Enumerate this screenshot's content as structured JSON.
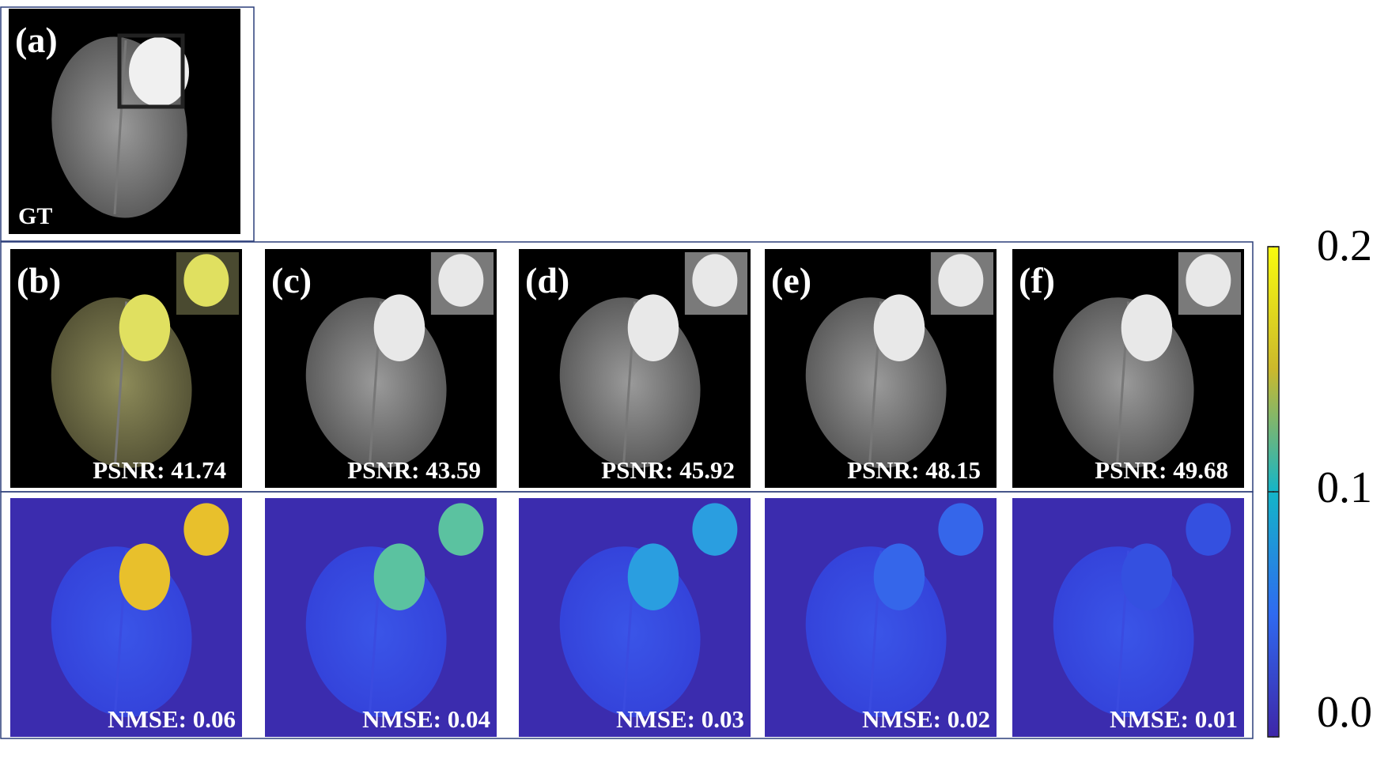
{
  "panels": [
    {
      "label": "(a)",
      "caption": "GT"
    },
    {
      "label": "(b)",
      "psnr": "PSNR: 41.74",
      "nmse": "NMSE: 0.06"
    },
    {
      "label": "(c)",
      "psnr": "PSNR: 43.59",
      "nmse": "NMSE: 0.04"
    },
    {
      "label": "(d)",
      "psnr": "PSNR: 45.92",
      "nmse": "NMSE: 0.03"
    },
    {
      "label": "(e)",
      "psnr": "PSNR: 48.15",
      "nmse": "NMSE: 0.02"
    },
    {
      "label": "(f)",
      "psnr": "PSNR: 49.68",
      "nmse": "NMSE: 0.01"
    }
  ],
  "colorbar": {
    "lim": [
      0,
      0.2
    ],
    "ticks": [
      {
        "value": 0,
        "label": "0.0"
      },
      0.1,
      0.2
    ]
  }
}
